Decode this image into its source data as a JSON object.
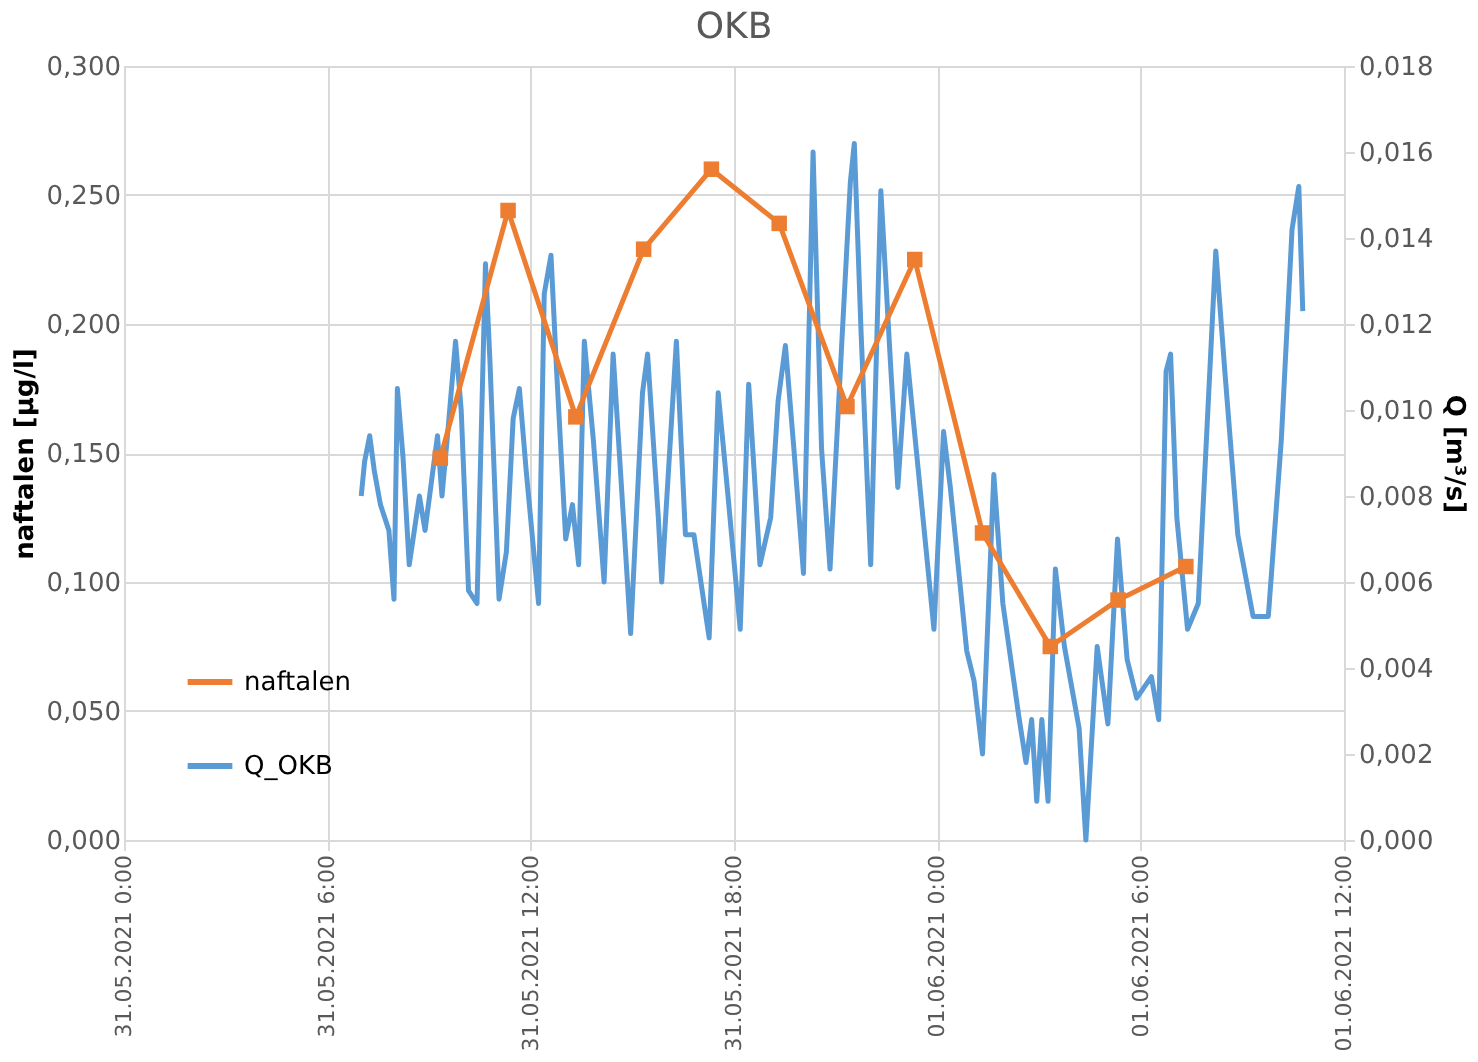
{
  "chart_data": {
    "type": "line",
    "title": "OKB",
    "ylabel": "naftalen [µg/l]",
    "y2label": "Q [m³/s]",
    "xlim": [
      "2021-05-31T00:00",
      "2021-06-01T12:00"
    ],
    "xticks": [
      {
        "value": "2021-05-31T00:00",
        "label": "31.05.2021 0:00"
      },
      {
        "value": "2021-05-31T06:00",
        "label": "31.05.2021 6:00"
      },
      {
        "value": "2021-05-31T12:00",
        "label": "31.05.2021 12:00"
      },
      {
        "value": "2021-05-31T18:00",
        "label": "31.05.2021 18:00"
      },
      {
        "value": "2021-06-01T00:00",
        "label": "01.06.2021 0:00"
      },
      {
        "value": "2021-06-01T06:00",
        "label": "01.06.2021 6:00"
      },
      {
        "value": "2021-06-01T12:00",
        "label": "01.06.2021 12:00"
      }
    ],
    "ylim": [
      0,
      0.3
    ],
    "yticks": [
      {
        "value": 0,
        "label": "0,000"
      },
      {
        "value": 0.05,
        "label": "0,050"
      },
      {
        "value": 0.1,
        "label": "0,100"
      },
      {
        "value": 0.15,
        "label": "0,150"
      },
      {
        "value": 0.2,
        "label": "0,200"
      },
      {
        "value": 0.25,
        "label": "0,250"
      },
      {
        "value": 0.3,
        "label": "0,300"
      }
    ],
    "y2lim": [
      0,
      0.018
    ],
    "y2ticks": [
      {
        "value": 0,
        "label": "0,000"
      },
      {
        "value": 0.002,
        "label": "0,002"
      },
      {
        "value": 0.004,
        "label": "0,004"
      },
      {
        "value": 0.006,
        "label": "0,006"
      },
      {
        "value": 0.008,
        "label": "0,008"
      },
      {
        "value": 0.01,
        "label": "0,010"
      },
      {
        "value": 0.012,
        "label": "0,012"
      },
      {
        "value": 0.014,
        "label": "0,014"
      },
      {
        "value": 0.016,
        "label": "0,016"
      },
      {
        "value": 0.018,
        "label": "0,018"
      }
    ],
    "grid": true,
    "legend": "bottom left",
    "line_style": "solid",
    "series": [
      {
        "name": "naftalen",
        "color": "#ed7d31",
        "marker": "square",
        "x": [
          "2021-05-31T09:20",
          "2021-05-31T11:20",
          "2021-05-31T13:20",
          "2021-05-31T15:20",
          "2021-05-31T17:20",
          "2021-05-31T19:20",
          "2021-05-31T21:20",
          "2021-05-31T23:20",
          "2021-06-01T01:20",
          "2021-06-01T03:20",
          "2021-06-01T05:20",
          "2021-06-01T07:20"
        ],
        "values": [
          0.148,
          0.244,
          0.164,
          0.229,
          0.26,
          0.239,
          0.168,
          0.225,
          0.119,
          0.075,
          0.093,
          0.106
        ]
      },
      {
        "name": "Q_OKB",
        "color": "#5b9bd5",
        "marker": "none",
        "axis": "y2",
        "x": [
          "2021-05-31T07:00",
          "2021-05-31T07:06",
          "2021-05-31T07:15",
          "2021-05-31T07:23",
          "2021-05-31T07:34",
          "2021-05-31T07:49",
          "2021-05-31T07:58",
          "2021-05-31T08:04",
          "2021-05-31T08:14",
          "2021-05-31T08:25",
          "2021-05-31T08:43",
          "2021-05-31T08:53",
          "2021-05-31T09:15",
          "2021-05-31T09:23",
          "2021-05-31T09:34",
          "2021-05-31T09:47",
          "2021-05-31T09:57",
          "2021-05-31T10:10",
          "2021-05-31T10:25",
          "2021-05-31T10:40",
          "2021-05-31T10:48",
          "2021-05-31T11:04",
          "2021-05-31T11:17",
          "2021-05-31T11:29",
          "2021-05-31T11:40",
          "2021-05-31T11:52",
          "2021-05-31T12:14",
          "2021-05-31T12:24",
          "2021-05-31T12:36",
          "2021-05-31T12:46",
          "2021-05-31T13:02",
          "2021-05-31T13:14",
          "2021-05-31T13:25",
          "2021-05-31T13:35",
          "2021-05-31T13:51",
          "2021-05-31T14:10",
          "2021-05-31T14:26",
          "2021-05-31T14:48",
          "2021-05-31T14:57",
          "2021-05-31T15:18",
          "2021-05-31T15:27",
          "2021-05-31T15:46",
          "2021-05-31T15:52",
          "2021-05-31T16:18",
          "2021-05-31T16:34",
          "2021-05-31T16:49",
          "2021-05-31T17:16",
          "2021-05-31T17:32",
          "2021-05-31T17:48",
          "2021-05-31T18:11",
          "2021-05-31T18:26",
          "2021-05-31T18:46",
          "2021-05-31T19:05",
          "2021-05-31T19:18",
          "2021-05-31T19:31",
          "2021-05-31T19:46",
          "2021-05-31T20:03",
          "2021-05-31T20:20",
          "2021-05-31T20:35",
          "2021-05-31T20:50",
          "2021-05-31T21:11",
          "2021-05-31T21:26",
          "2021-05-31T21:33",
          "2021-05-31T21:45",
          "2021-05-31T22:02",
          "2021-05-31T22:20",
          "2021-05-31T22:37",
          "2021-05-31T22:50",
          "2021-05-31T23:06",
          "2021-05-31T23:24",
          "2021-05-31T23:54",
          "2021-06-01T00:11",
          "2021-06-01T00:23",
          "2021-06-01T00:52",
          "2021-06-01T01:05",
          "2021-06-01T01:20",
          "2021-06-01T01:40",
          "2021-06-01T01:56",
          "2021-06-01T02:24",
          "2021-06-01T02:37",
          "2021-06-01T02:47",
          "2021-06-01T02:56",
          "2021-06-01T03:05",
          "2021-06-01T03:16",
          "2021-06-01T03:29",
          "2021-06-01T03:45",
          "2021-06-01T04:11",
          "2021-06-01T04:23",
          "2021-06-01T04:43",
          "2021-06-01T05:02",
          "2021-06-01T05:19",
          "2021-06-01T05:36",
          "2021-06-01T05:53",
          "2021-06-01T06:19",
          "2021-06-01T06:32",
          "2021-06-01T06:45",
          "2021-06-01T06:53",
          "2021-06-01T07:04",
          "2021-06-01T07:23",
          "2021-06-01T07:42",
          "2021-06-01T08:13",
          "2021-06-01T08:29",
          "2021-06-01T08:52",
          "2021-06-01T09:19",
          "2021-06-01T09:46",
          "2021-06-01T10:09",
          "2021-06-01T10:28",
          "2021-06-01T10:40",
          "2021-06-01T10:47"
        ],
        "values": [
          0.008,
          0.0088,
          0.0094,
          0.0086,
          0.0078,
          0.0072,
          0.0056,
          0.0105,
          0.0089,
          0.0064,
          0.008,
          0.0072,
          0.0094,
          0.008,
          0.0096,
          0.0116,
          0.01,
          0.0058,
          0.0055,
          0.0134,
          0.0111,
          0.0056,
          0.0067,
          0.0098,
          0.0105,
          0.0086,
          0.0055,
          0.0127,
          0.0136,
          0.0109,
          0.007,
          0.0078,
          0.0064,
          0.0116,
          0.0093,
          0.006,
          0.0113,
          0.0067,
          0.0048,
          0.0104,
          0.0113,
          0.0075,
          0.006,
          0.0116,
          0.0071,
          0.0071,
          0.0047,
          0.0104,
          0.0082,
          0.0049,
          0.0106,
          0.0064,
          0.0075,
          0.0102,
          0.0115,
          0.0091,
          0.0062,
          0.016,
          0.0091,
          0.0063,
          0.0116,
          0.0153,
          0.0162,
          0.0118,
          0.0064,
          0.0151,
          0.0111,
          0.0082,
          0.0113,
          0.0089,
          0.0049,
          0.0095,
          0.0082,
          0.0044,
          0.0037,
          0.002,
          0.0085,
          0.0055,
          0.0029,
          0.0018,
          0.0028,
          0.0009,
          0.0028,
          0.0009,
          0.0063,
          0.0045,
          0.0026,
          0.0,
          0.0045,
          0.0027,
          0.007,
          0.0042,
          0.0033,
          0.0038,
          0.0028,
          0.0109,
          0.0113,
          0.0075,
          0.0049,
          0.0055,
          0.0137,
          0.0109,
          0.0071,
          0.0052,
          0.0052,
          0.0093,
          0.0142,
          0.0152,
          0.0123
        ]
      }
    ]
  }
}
